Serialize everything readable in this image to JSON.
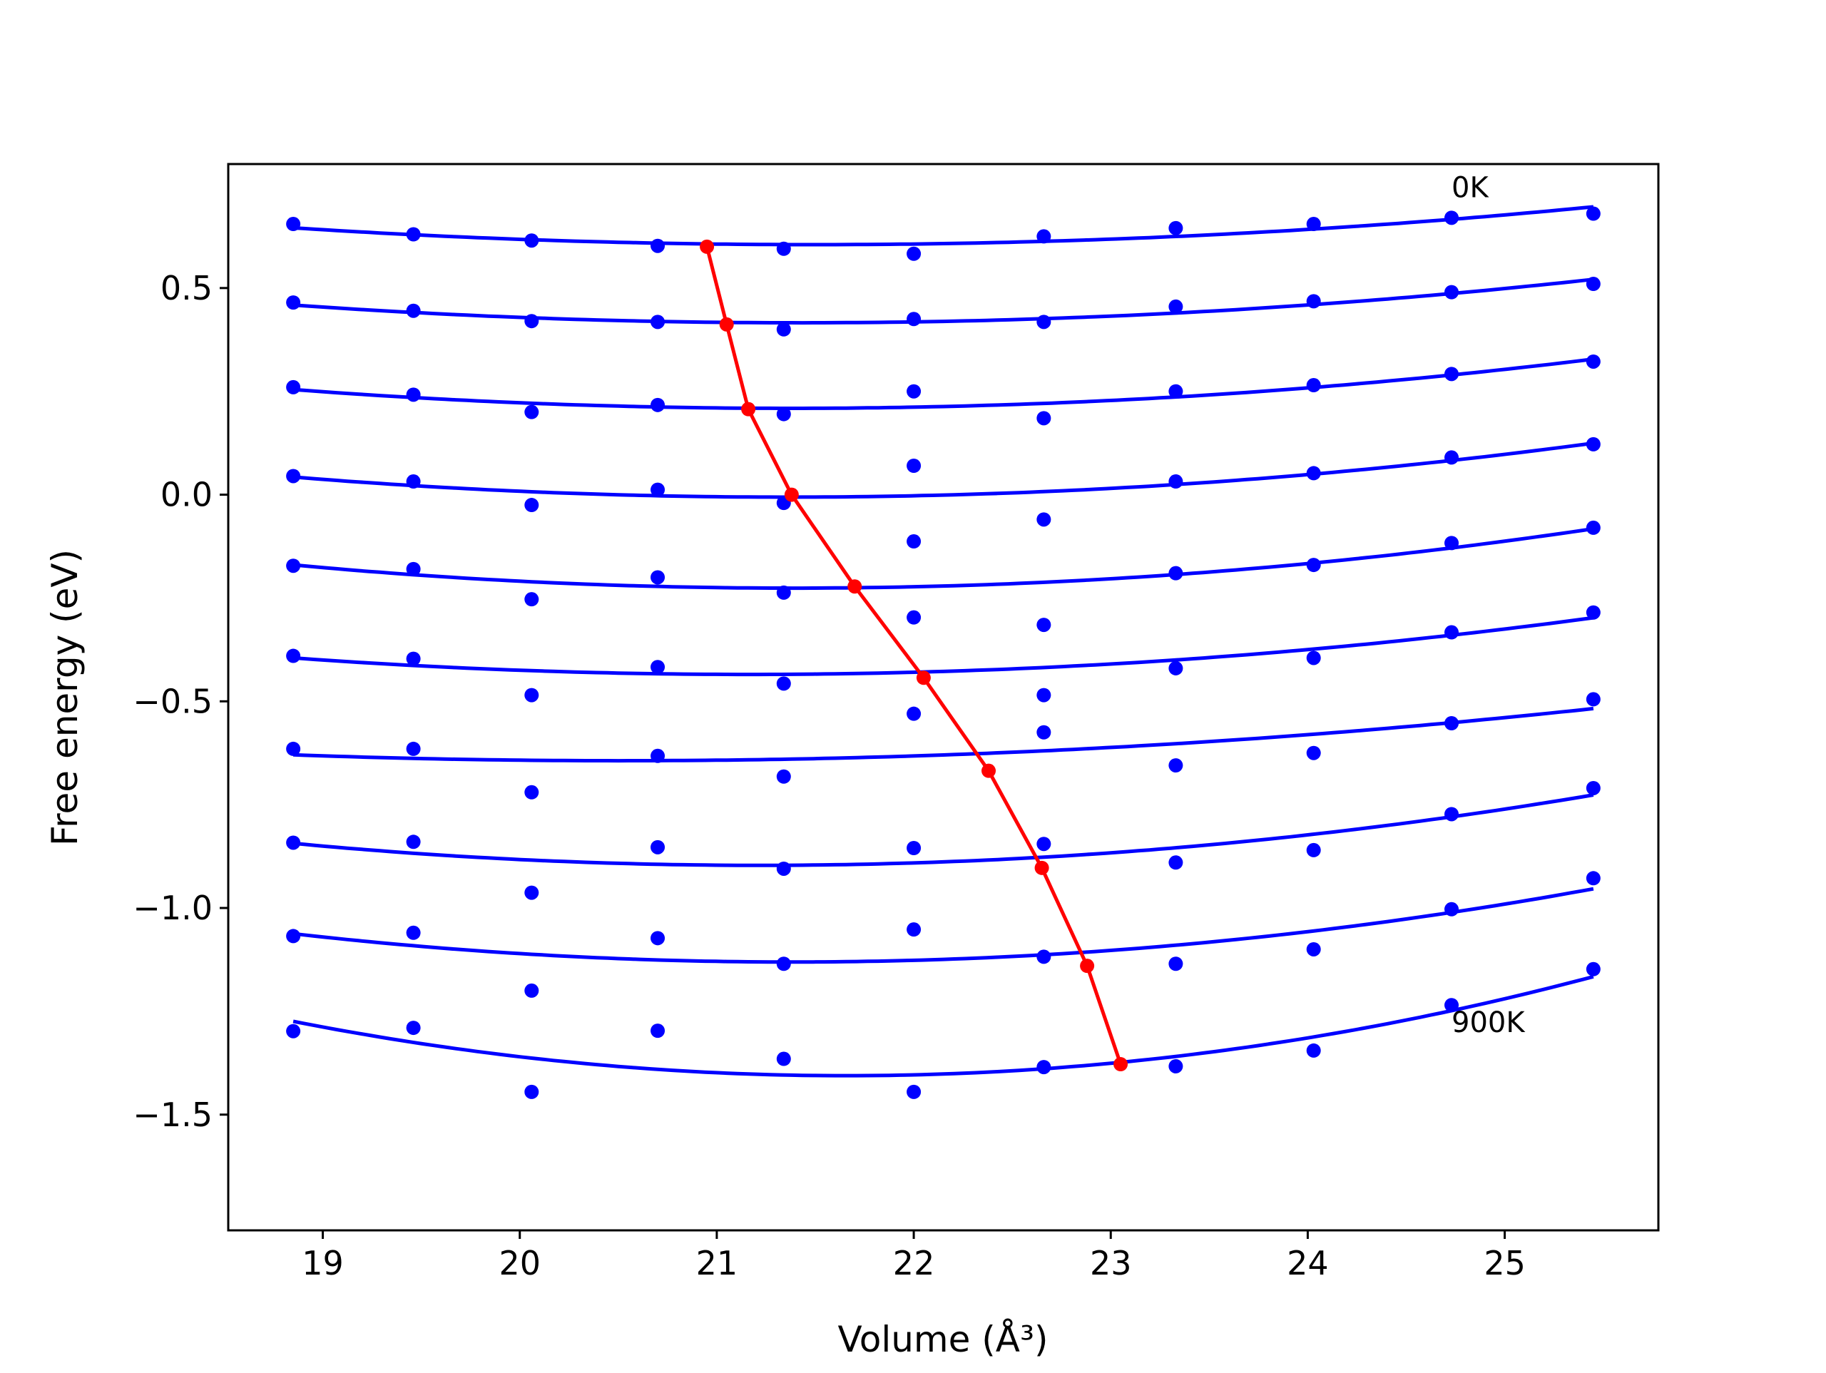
{
  "chart_data": {
    "type": "scatter",
    "title": "",
    "xlabel": "Volume (Å³)",
    "ylabel": "Free energy (eV)",
    "xlim": [
      18.52,
      25.78
    ],
    "ylim": [
      -1.78,
      0.8
    ],
    "xticks": [
      19,
      20,
      21,
      22,
      23,
      24,
      25
    ],
    "yticks": [
      0.5,
      0.0,
      -0.5,
      -1.0,
      -1.5
    ],
    "ytick_labels": [
      "0.5",
      "0.0",
      "−0.5",
      "−1.0",
      "−1.5"
    ],
    "grid": false,
    "annotations": [
      {
        "text": "0K",
        "x": 24.73,
        "y": 0.72
      },
      {
        "text": "900K",
        "x": 24.73,
        "y": -1.3
      }
    ],
    "colors": {
      "points": "#0000ff",
      "curves": "#0000ff",
      "minimum_path": "#ff0000"
    },
    "x": [
      18.85,
      19.46,
      20.06,
      20.7,
      21.34,
      22.0,
      22.66,
      23.33,
      24.03,
      24.73,
      25.45
    ],
    "series": [
      {
        "y": [
          0.655,
          0.63,
          0.615,
          0.602,
          0.595,
          0.583,
          0.625,
          0.645,
          0.655,
          0.67,
          0.68
        ]
      },
      {
        "y": [
          0.465,
          0.445,
          0.42,
          0.418,
          0.4,
          0.425,
          0.418,
          0.455,
          0.468,
          0.49,
          0.51
        ]
      },
      {
        "y": [
          0.26,
          0.242,
          0.2,
          0.217,
          0.195,
          0.25,
          0.185,
          0.25,
          0.265,
          0.292,
          0.322
        ]
      },
      {
        "y": [
          0.045,
          0.032,
          -0.025,
          0.012,
          -0.02,
          0.07,
          -0.06,
          0.032,
          0.052,
          0.09,
          0.122
        ]
      },
      {
        "y": [
          -0.172,
          -0.18,
          -0.253,
          -0.2,
          -0.237,
          -0.113,
          -0.315,
          -0.19,
          -0.17,
          -0.117,
          -0.08
        ]
      },
      {
        "y": [
          -0.39,
          -0.397,
          -0.485,
          -0.417,
          -0.457,
          -0.297,
          -0.485,
          -0.42,
          -0.395,
          -0.333,
          -0.285
        ]
      },
      {
        "y": [
          -0.615,
          -0.615,
          -0.72,
          -0.632,
          -0.682,
          -0.53,
          -0.575,
          -0.655,
          -0.625,
          -0.553,
          -0.495
        ]
      },
      {
        "y": [
          -0.842,
          -0.84,
          -0.963,
          -0.853,
          -0.905,
          -0.855,
          -0.845,
          -0.89,
          -0.86,
          -0.773,
          -0.71
        ]
      },
      {
        "y": [
          -1.068,
          -1.06,
          -1.2,
          -1.073,
          -1.135,
          -1.052,
          -1.118,
          -1.135,
          -1.1,
          -1.003,
          -0.928
        ]
      },
      {
        "y": [
          -1.298,
          -1.29,
          -1.445,
          -1.297,
          -1.365,
          -1.445,
          -1.385,
          -1.383,
          -1.345,
          -1.235,
          -1.148
        ]
      }
    ],
    "minimum_path": {
      "x": [
        20.95,
        21.05,
        21.16,
        21.38,
        21.7,
        22.05,
        22.38,
        22.65,
        22.88,
        23.05
      ],
      "y": [
        0.6,
        0.412,
        0.207,
        0.0,
        -0.222,
        -0.443,
        -0.668,
        -0.903,
        -1.14,
        -1.378
      ]
    }
  }
}
